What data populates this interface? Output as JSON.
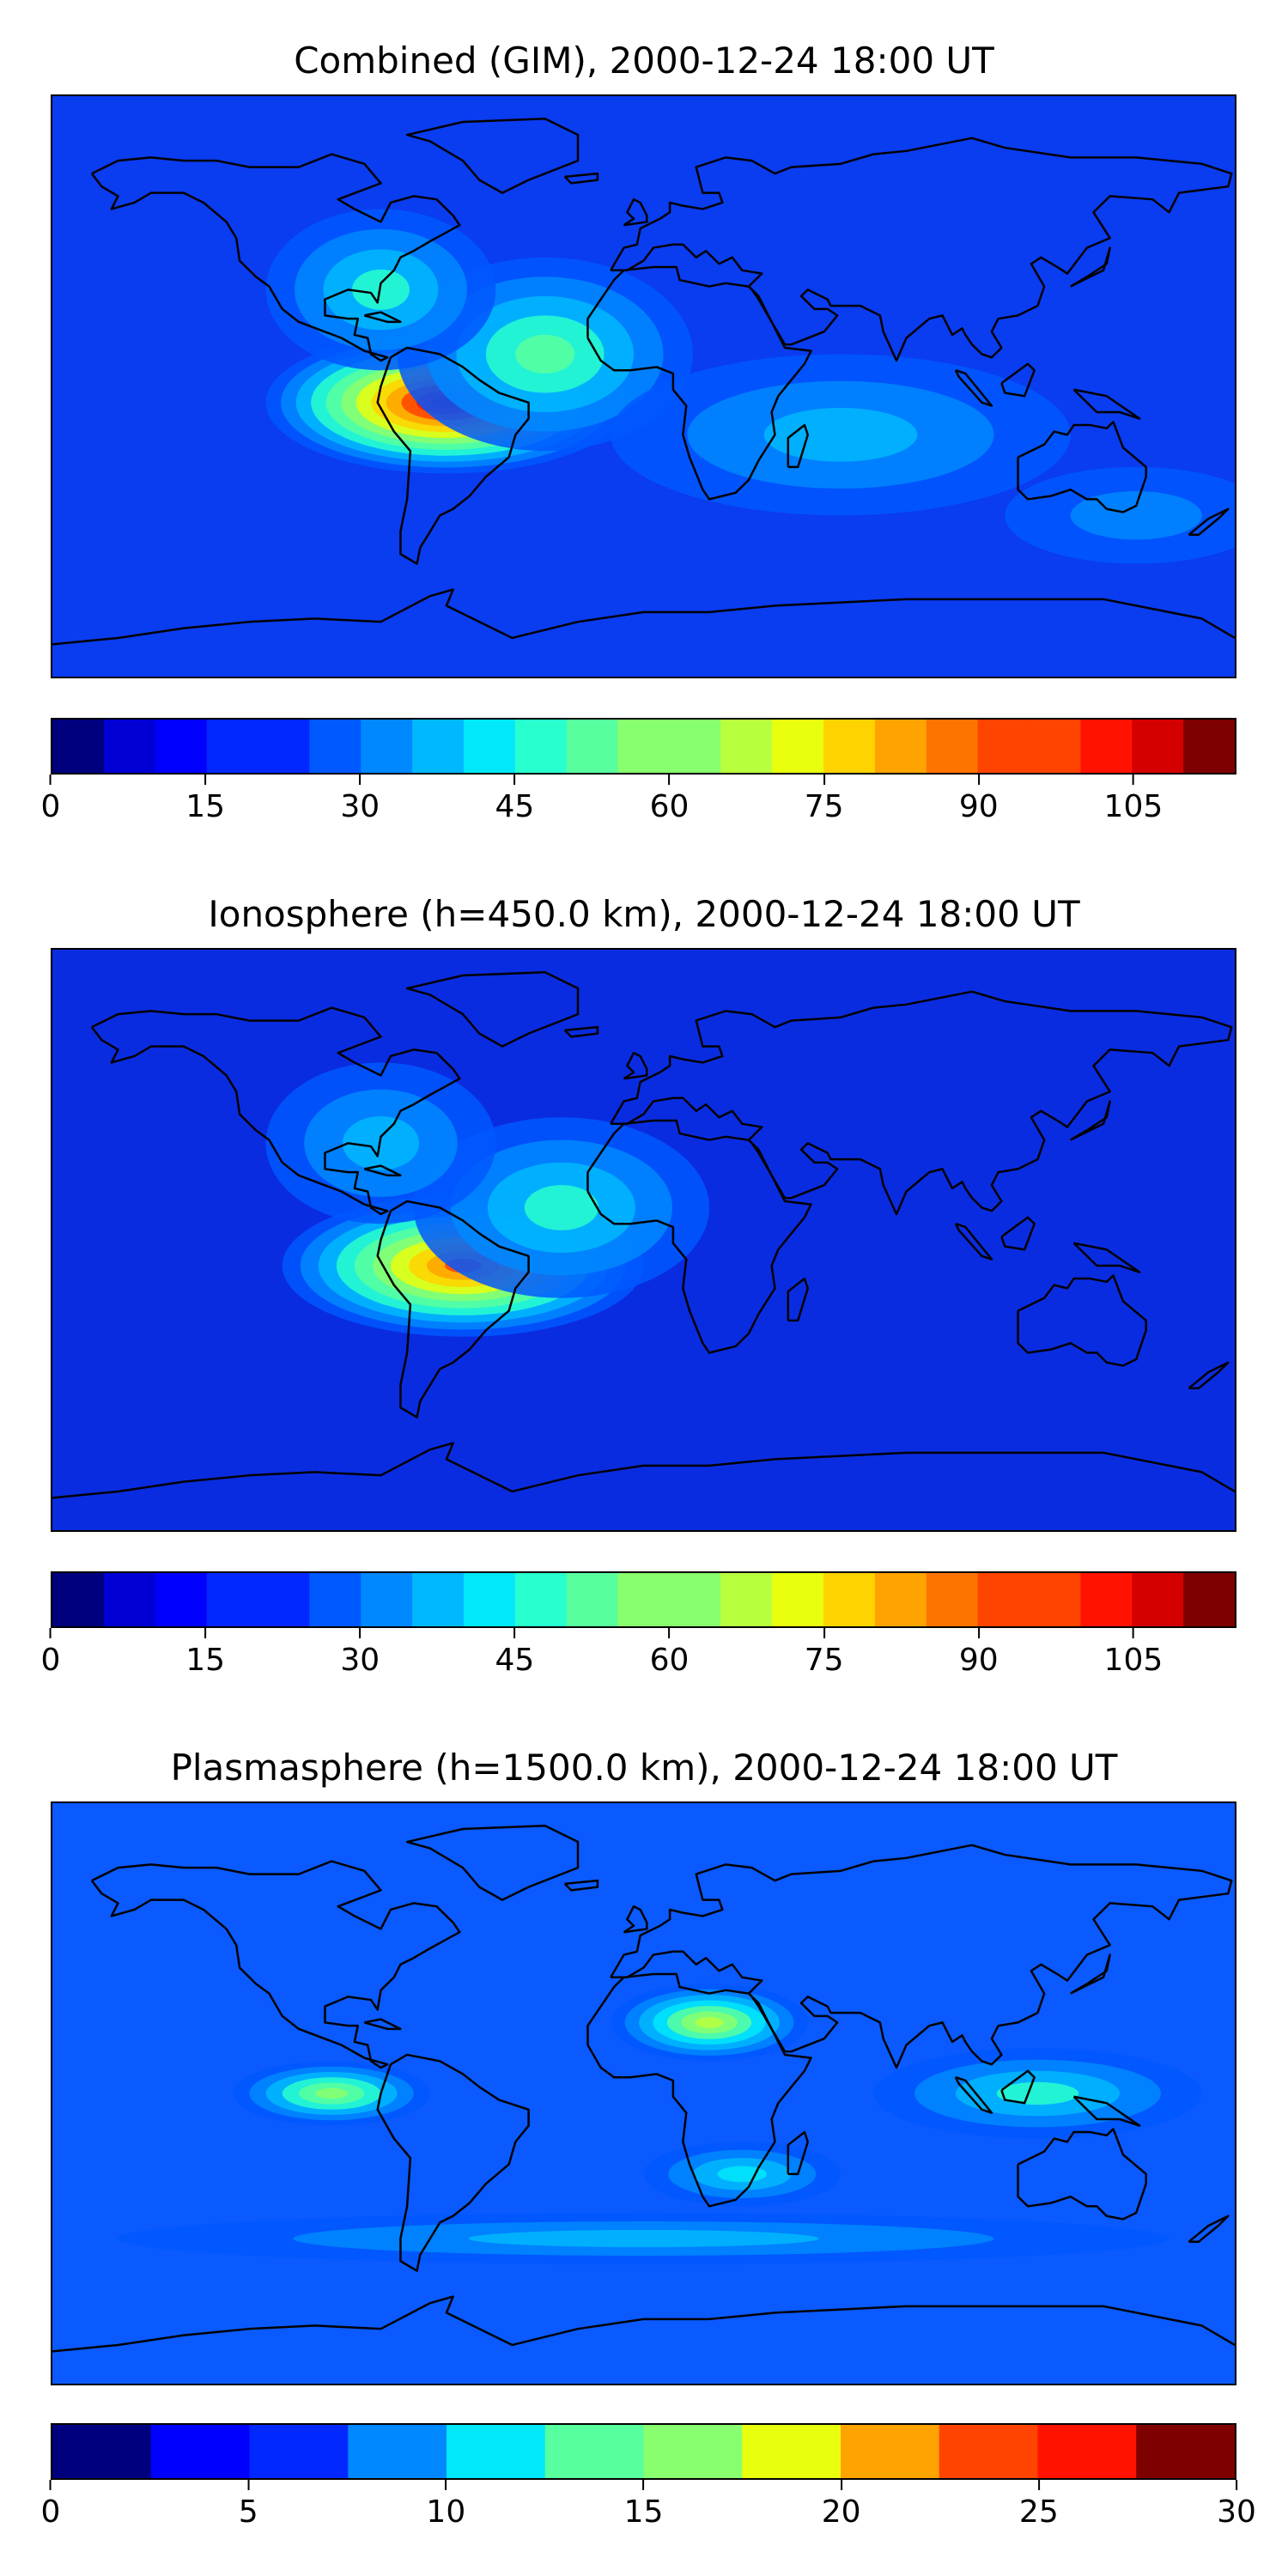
{
  "panels": [
    {
      "title": "Combined (GIM), 2000-12-24 18:00 UT",
      "colorbar": {
        "min": 0,
        "max": 115,
        "levels": 23,
        "ticks": [
          "0",
          "15",
          "30",
          "45",
          "60",
          "75",
          "90",
          "105"
        ],
        "tick_values": [
          0,
          15,
          30,
          45,
          60,
          75,
          90,
          105
        ]
      },
      "field": {
        "background_color": "#0a3cf0",
        "blobs": [
          {
            "lon": -60,
            "lat": -5,
            "amp": 1.0,
            "sx": 55,
            "sy": 22
          },
          {
            "lon": -30,
            "lat": 10,
            "amp": 0.45,
            "sx": 45,
            "sy": 30
          },
          {
            "lon": -80,
            "lat": 30,
            "amp": 0.35,
            "sx": 35,
            "sy": 25
          },
          {
            "lon": 60,
            "lat": -15,
            "amp": 0.25,
            "sx": 70,
            "sy": 25
          },
          {
            "lon": 150,
            "lat": -40,
            "amp": 0.15,
            "sx": 40,
            "sy": 15
          }
        ]
      }
    },
    {
      "title": "Ionosphere  (h=450.0 km), 2000-12-24 18:00 UT",
      "colorbar": {
        "min": 0,
        "max": 115,
        "levels": 23,
        "ticks": [
          "0",
          "15",
          "30",
          "45",
          "60",
          "75",
          "90",
          "105"
        ],
        "tick_values": [
          0,
          15,
          30,
          45,
          60,
          75,
          90,
          105
        ]
      },
      "field": {
        "background_color": "#0a2ce0",
        "blobs": [
          {
            "lon": -55,
            "lat": -8,
            "amp": 0.85,
            "sx": 55,
            "sy": 22
          },
          {
            "lon": -25,
            "lat": 10,
            "amp": 0.35,
            "sx": 45,
            "sy": 28
          },
          {
            "lon": -80,
            "lat": 30,
            "amp": 0.25,
            "sx": 35,
            "sy": 25
          }
        ]
      }
    },
    {
      "title": "Plasmasphere (h=1500.0 km), 2000-12-24 18:00 UT",
      "colorbar": {
        "min": 0,
        "max": 30,
        "levels": 12,
        "ticks": [
          "0",
          "5",
          "10",
          "15",
          "20",
          "25",
          "30"
        ],
        "tick_values": [
          0,
          5,
          10,
          15,
          20,
          25,
          30
        ]
      },
      "field": {
        "background_color": "#0a5aff",
        "blobs": [
          {
            "lon": 20,
            "lat": 22,
            "amp": 0.55,
            "sx": 30,
            "sy": 12
          },
          {
            "lon": -95,
            "lat": 0,
            "amp": 0.5,
            "sx": 30,
            "sy": 10
          },
          {
            "lon": 120,
            "lat": 0,
            "amp": 0.35,
            "sx": 50,
            "sy": 14
          },
          {
            "lon": 30,
            "lat": -25,
            "amp": 0.3,
            "sx": 30,
            "sy": 10
          },
          {
            "lon": 0,
            "lat": -45,
            "amp": 0.25,
            "sx": 160,
            "sy": 8
          }
        ]
      }
    }
  ],
  "colors": {
    "colormap": [
      "#00007f",
      "#0000d4",
      "#0000ff",
      "#0028ff",
      "#0058ff",
      "#0088ff",
      "#00b8ff",
      "#00e8fa",
      "#28ffce",
      "#58ff9e",
      "#88ff6e",
      "#b8ff3e",
      "#e8ff0e",
      "#ffd300",
      "#ffa300",
      "#ff7300",
      "#ff4300",
      "#ff1300",
      "#d40000",
      "#7f0000"
    ],
    "coastline": "#000000"
  }
}
